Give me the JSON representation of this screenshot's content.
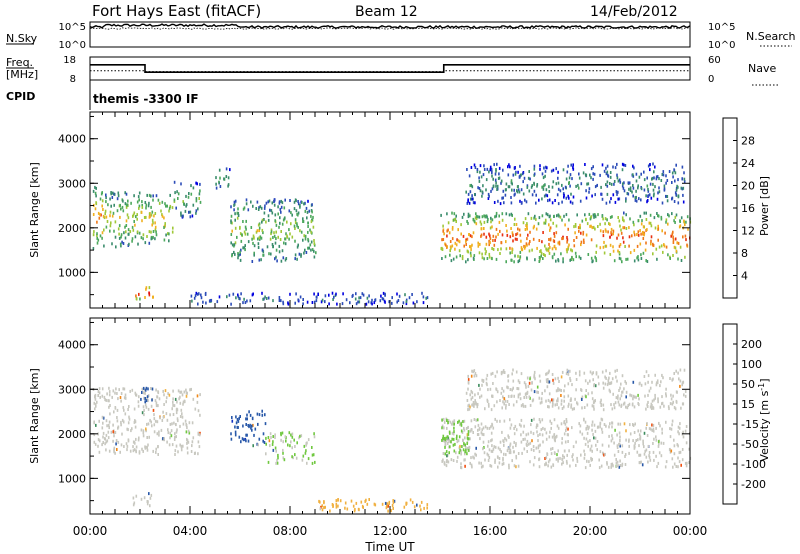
{
  "header": {
    "station": "Fort Hays East (fitACF)",
    "beam": "Beam 12",
    "date": "14/Feb/2012"
  },
  "noise_panel": {
    "left_label": "N.Sky",
    "left_ticks": [
      "10^5",
      "10^0"
    ],
    "right_ticks": [
      "10^5",
      "10^0"
    ],
    "right_label": "N.Search"
  },
  "freq_panel": {
    "left_label_1": "Freq.",
    "left_label_2": "[MHz]",
    "left_ticks": [
      "18",
      "8"
    ],
    "right_ticks": [
      "60",
      "0"
    ],
    "right_label": "Nave",
    "cpid_label": "CPID",
    "cpid_text": "themis -3300 IF",
    "freq_steps": [
      {
        "t0": 0,
        "t1": 2.2,
        "mhz": 14.6
      },
      {
        "t0": 2.2,
        "t1": 14.15,
        "mhz": 11.4
      },
      {
        "t0": 14.15,
        "t1": 24,
        "mhz": 14.6
      }
    ],
    "nave_steps": [
      {
        "t0": 0,
        "t1": 2.2,
        "nave": 24
      },
      {
        "t0": 2.2,
        "t1": 14.15,
        "nave": 22
      },
      {
        "t0": 14.15,
        "t1": 24,
        "nave": 24
      }
    ]
  },
  "x_axis": {
    "label": "Time UT",
    "ticks": [
      "00:00",
      "04:00",
      "08:00",
      "12:00",
      "16:00",
      "20:00",
      "00:00"
    ],
    "tick_hours": [
      0,
      4,
      8,
      12,
      16,
      20,
      24
    ]
  },
  "chart_data": [
    {
      "type": "heatmap",
      "name_panel": "power",
      "xlim": [
        0,
        24
      ],
      "ylim": [
        200,
        4600
      ],
      "ylabel": "Slant Range [km]",
      "yticks": [
        1000,
        2000,
        3000,
        4000
      ],
      "yticklabels": [
        "1000",
        "2000",
        "3000",
        "4000"
      ],
      "colorbar": {
        "label": "Power [dB]",
        "ticks": [
          "4",
          "8",
          "12",
          "16",
          "20",
          "24",
          "28"
        ],
        "range": [
          0,
          30
        ],
        "colors": [
          "#0000e0",
          "#2c4cb8",
          "#3a8c6c",
          "#4ca85c",
          "#a0c838",
          "#f0b020",
          "#f07818",
          "#e83010",
          "#e00000"
        ]
      },
      "regions": [
        {
          "t0": 0.1,
          "t1": 0.5,
          "r0": 1500,
          "r1": 2900,
          "v": 18
        },
        {
          "t0": 0.5,
          "t1": 2.0,
          "r0": 1500,
          "r1": 2800,
          "v": 14
        },
        {
          "t0": 2.0,
          "t1": 3.3,
          "r0": 1600,
          "r1": 2700,
          "v": 16
        },
        {
          "t0": 3.3,
          "t1": 4.4,
          "r0": 2200,
          "r1": 3000,
          "v": 10
        },
        {
          "t0": 5.0,
          "t1": 5.6,
          "r0": 2800,
          "r1": 3300,
          "v": 8
        },
        {
          "t0": 5.6,
          "t1": 9.0,
          "r0": 1200,
          "r1": 2600,
          "v": 12
        },
        {
          "t0": 1.7,
          "t1": 2.5,
          "r0": 350,
          "r1": 650,
          "v": 26
        },
        {
          "t0": 14.0,
          "t1": 24.0,
          "r0": 1200,
          "r1": 2300,
          "v": 20
        },
        {
          "t0": 15.0,
          "t1": 23.8,
          "r0": 2500,
          "r1": 3400,
          "v": 7
        },
        {
          "t0": 4.0,
          "t1": 13.5,
          "r0": 250,
          "r1": 500,
          "v": 6
        }
      ]
    },
    {
      "type": "heatmap",
      "name_panel": "velocity",
      "xlim": [
        0,
        24
      ],
      "ylim": [
        200,
        4600
      ],
      "ylabel": "Slant Range [km]",
      "yticks": [
        1000,
        2000,
        3000,
        4000
      ],
      "yticklabels": [
        "1000",
        "2000",
        "3000",
        "4000"
      ],
      "colorbar": {
        "label": "Velocity [m s^-1]",
        "ticks": [
          "200",
          "100",
          "50",
          "15",
          "-15",
          "-50",
          "-100",
          "-200"
        ],
        "range": [
          -250,
          250
        ],
        "colors": [
          "#e80000",
          "#f05010",
          "#f08818",
          "#f0b040",
          "#c8c8c0",
          "#70c840",
          "#3c8c5c",
          "#2858a8",
          "#1030c0"
        ]
      },
      "regions": [
        {
          "t0": 0.1,
          "t1": 4.4,
          "r0": 1500,
          "r1": 3000,
          "v": 0
        },
        {
          "t0": 2.0,
          "t1": 2.5,
          "r0": 2600,
          "r1": 3000,
          "v": 160
        },
        {
          "t0": 5.6,
          "t1": 7.0,
          "r0": 1700,
          "r1": 2500,
          "v": 180
        },
        {
          "t0": 7.0,
          "t1": 9.0,
          "r0": 1300,
          "r1": 2000,
          "v": 30
        },
        {
          "t0": 14.0,
          "t1": 24.0,
          "r0": 1200,
          "r1": 2300,
          "v": 0
        },
        {
          "t0": 14.0,
          "t1": 15.2,
          "r0": 1500,
          "r1": 2300,
          "v": 40
        },
        {
          "t0": 9.0,
          "t1": 13.5,
          "r0": 220,
          "r1": 500,
          "v": -60
        },
        {
          "t0": 1.7,
          "t1": 2.5,
          "r0": 350,
          "r1": 650,
          "v": 0
        },
        {
          "t0": 15.0,
          "t1": 23.8,
          "r0": 2500,
          "r1": 3400,
          "v": 0
        }
      ]
    }
  ]
}
